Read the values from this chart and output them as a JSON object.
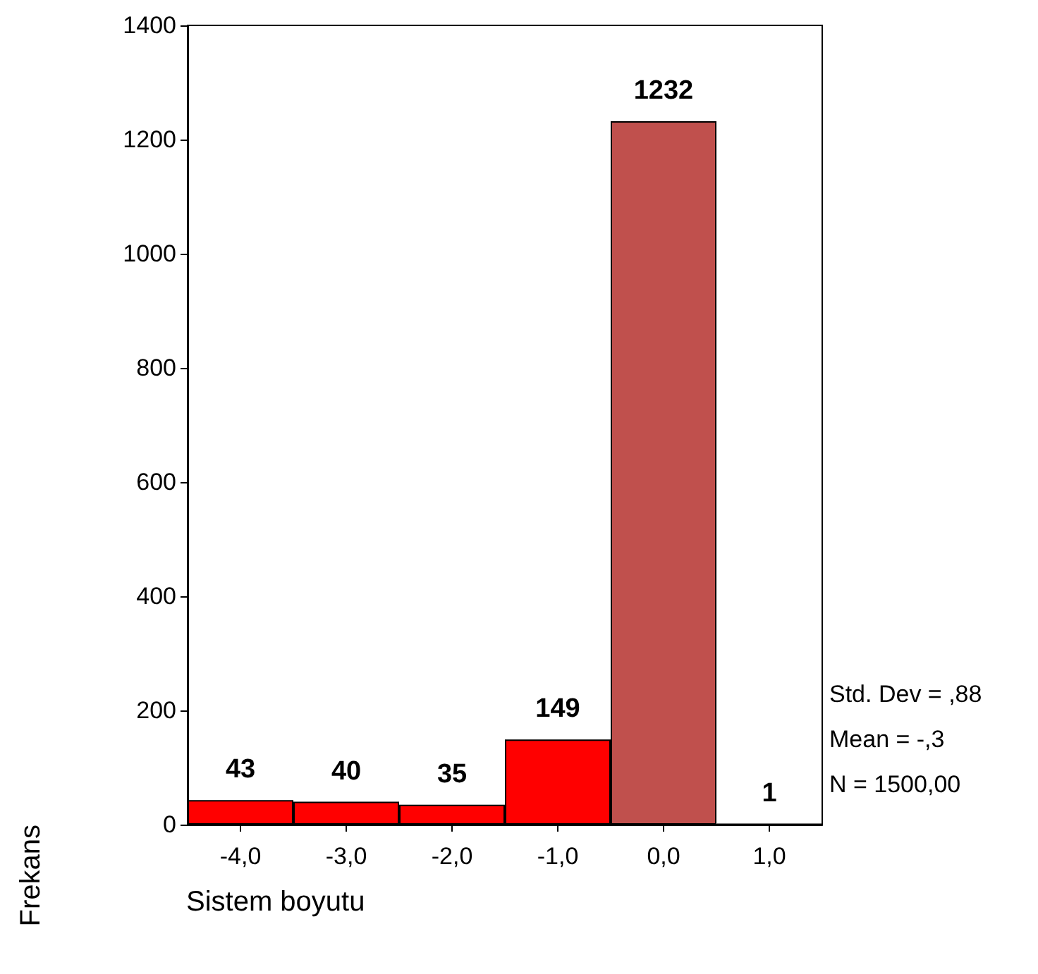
{
  "chart_data": {
    "type": "bar",
    "xlabel": "Sistem boyutu",
    "ylabel": "Frekans",
    "categories": [
      "-4,0",
      "-3,0",
      "-2,0",
      "-1,0",
      "0,0",
      "1,0"
    ],
    "values": [
      43,
      40,
      35,
      149,
      1232,
      1
    ],
    "colors": [
      "#ff0000",
      "#ff0000",
      "#ff0000",
      "#ff0000",
      "#c0504d",
      "#ff0000"
    ],
    "ylim": [
      0,
      1400
    ],
    "yticks": [
      0,
      200,
      400,
      600,
      800,
      1000,
      1200,
      1400
    ],
    "grid": false,
    "data_labels": true,
    "annotations": [
      "Std. Dev = ,88",
      "Mean = -,3",
      "N = 1500,00"
    ]
  }
}
